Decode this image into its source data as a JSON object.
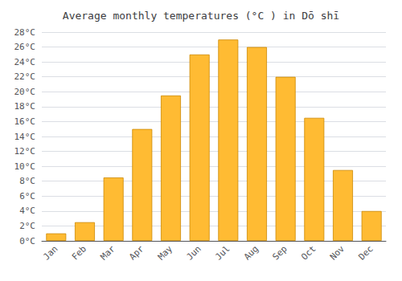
{
  "chart_data": {
    "type": "bar",
    "title": "Average monthly temperatures (°C ) in Dō shī",
    "categories": [
      "Jan",
      "Feb",
      "Mar",
      "Apr",
      "May",
      "Jun",
      "Jul",
      "Aug",
      "Sep",
      "Oct",
      "Nov",
      "Dec"
    ],
    "values": [
      1.0,
      2.5,
      8.5,
      15.0,
      19.5,
      25.0,
      27.0,
      26.0,
      22.0,
      16.5,
      9.5,
      4.0
    ],
    "color": "#FFBB33",
    "ylim": [
      0,
      28
    ],
    "yticks": [
      {
        "value": 0,
        "label": "0°C"
      },
      {
        "value": 2,
        "label": "2°C"
      },
      {
        "value": 4,
        "label": "4°C"
      },
      {
        "value": 6,
        "label": "6°C"
      },
      {
        "value": 8,
        "label": "8°C"
      },
      {
        "value": 10,
        "label": "10°C"
      },
      {
        "value": 12,
        "label": "12°C"
      },
      {
        "value": 14,
        "label": "14°C"
      },
      {
        "value": 16,
        "label": "16°C"
      },
      {
        "value": 18,
        "label": "18°C"
      },
      {
        "value": 20,
        "label": "20°C"
      },
      {
        "value": 22,
        "label": "22°C"
      },
      {
        "value": 24,
        "label": "24°C"
      },
      {
        "value": 26,
        "label": "26°C"
      },
      {
        "value": 28,
        "label": "28°C"
      }
    ],
    "grid": true
  }
}
